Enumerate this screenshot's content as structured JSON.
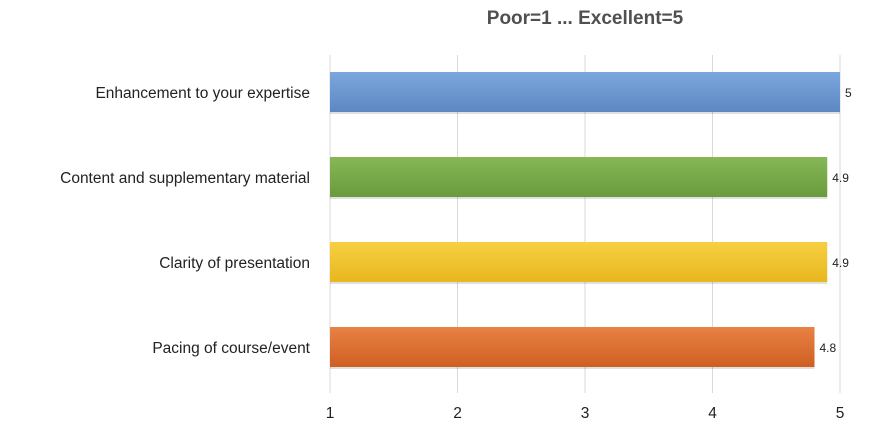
{
  "chart_data": {
    "type": "bar",
    "orientation": "horizontal",
    "title": "Poor=1 ... Excellent=5",
    "xlabel": "",
    "ylabel": "",
    "xlim": [
      1,
      5
    ],
    "x_ticks": [
      "1",
      "2",
      "3",
      "4",
      "5"
    ],
    "grid": true,
    "legend": "none",
    "categories": [
      "Enhancement to your expertise",
      "Content and supplementary material",
      "Clarity of presentation",
      "Pacing of course/event"
    ],
    "values": [
      5,
      4.9,
      4.9,
      4.8
    ],
    "data_labels": [
      "5",
      "4.9",
      "4.9",
      "4.8"
    ],
    "colors": [
      "#6f9bd1",
      "#7aab4a",
      "#f2c531",
      "#de7133"
    ]
  }
}
